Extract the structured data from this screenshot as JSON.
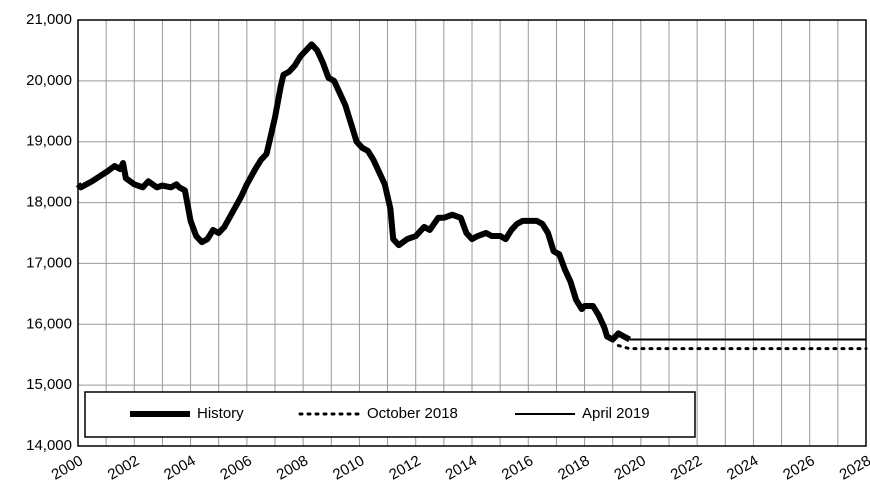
{
  "chart_data": {
    "type": "line",
    "xlim": [
      2000,
      2028
    ],
    "xticks": [
      2000,
      2002,
      2004,
      2006,
      2008,
      2010,
      2012,
      2014,
      2016,
      2018,
      2020,
      2022,
      2024,
      2026,
      2028
    ],
    "ylim": [
      14000,
      21000
    ],
    "yticks": [
      {
        "value": 14000,
        "label": "14,000"
      },
      {
        "value": 15000,
        "label": "15,000"
      },
      {
        "value": 16000,
        "label": "16,000"
      },
      {
        "value": 17000,
        "label": "17,000"
      },
      {
        "value": 18000,
        "label": "18,000"
      },
      {
        "value": 19000,
        "label": "19,000"
      },
      {
        "value": 20000,
        "label": "20,000"
      },
      {
        "value": 21000,
        "label": "21,000"
      }
    ],
    "grid": true,
    "legend": "bottom",
    "series": [
      {
        "name": "History",
        "color": "#000000",
        "style": "thick",
        "x": [
          2000.0,
          2000.1,
          2000.5,
          2001.0,
          2001.3,
          2001.5,
          2001.6,
          2001.7,
          2002.0,
          2002.3,
          2002.5,
          2002.8,
          2003.0,
          2003.3,
          2003.5,
          2003.6,
          2003.8,
          2004.0,
          2004.2,
          2004.4,
          2004.6,
          2004.8,
          2005.0,
          2005.2,
          2005.5,
          2005.8,
          2006.0,
          2006.3,
          2006.5,
          2006.7,
          2007.0,
          2007.2,
          2007.3,
          2007.5,
          2007.7,
          2007.9,
          2008.1,
          2008.3,
          2008.5,
          2008.7,
          2008.9,
          2009.1,
          2009.3,
          2009.5,
          2009.7,
          2009.9,
          2010.1,
          2010.3,
          2010.5,
          2010.7,
          2010.9,
          2011.1,
          2011.2,
          2011.4,
          2011.7,
          2012.0,
          2012.3,
          2012.5,
          2012.8,
          2013.0,
          2013.3,
          2013.6,
          2013.8,
          2014.0,
          2014.2,
          2014.5,
          2014.7,
          2015.0,
          2015.2,
          2015.4,
          2015.6,
          2015.8,
          2016.0,
          2016.3,
          2016.5,
          2016.7,
          2016.9,
          2017.1,
          2017.3,
          2017.5,
          2017.7,
          2017.9,
          2018.0,
          2018.3,
          2018.5,
          2018.7,
          2018.8,
          2019.0,
          2019.2,
          2019.4,
          2019.6
        ],
        "values": [
          18300,
          18250,
          18350,
          18500,
          18600,
          18550,
          18650,
          18400,
          18300,
          18250,
          18350,
          18250,
          18280,
          18250,
          18300,
          18250,
          18200,
          17700,
          17450,
          17350,
          17400,
          17550,
          17500,
          17600,
          17850,
          18100,
          18300,
          18550,
          18700,
          18800,
          19400,
          19900,
          20100,
          20150,
          20250,
          20400,
          20500,
          20600,
          20500,
          20300,
          20050,
          20000,
          19800,
          19600,
          19300,
          19000,
          18900,
          18850,
          18700,
          18500,
          18300,
          17900,
          17400,
          17300,
          17400,
          17450,
          17600,
          17550,
          17750,
          17750,
          17800,
          17750,
          17500,
          17400,
          17450,
          17500,
          17450,
          17450,
          17400,
          17550,
          17650,
          17700,
          17700,
          17700,
          17650,
          17500,
          17200,
          17150,
          16900,
          16700,
          16400,
          16250,
          16300,
          16300,
          16150,
          15950,
          15800,
          15750,
          15850,
          15800,
          15750
        ]
      },
      {
        "name": "October 2018",
        "color": "#000000",
        "style": "dotted",
        "x": [
          2019.2,
          2019.6,
          2028
        ],
        "values": [
          15650,
          15600,
          15600
        ]
      },
      {
        "name": "April 2019",
        "color": "#000000",
        "style": "thin",
        "x": [
          2019.6,
          2028
        ],
        "values": [
          15750,
          15750
        ]
      }
    ]
  }
}
